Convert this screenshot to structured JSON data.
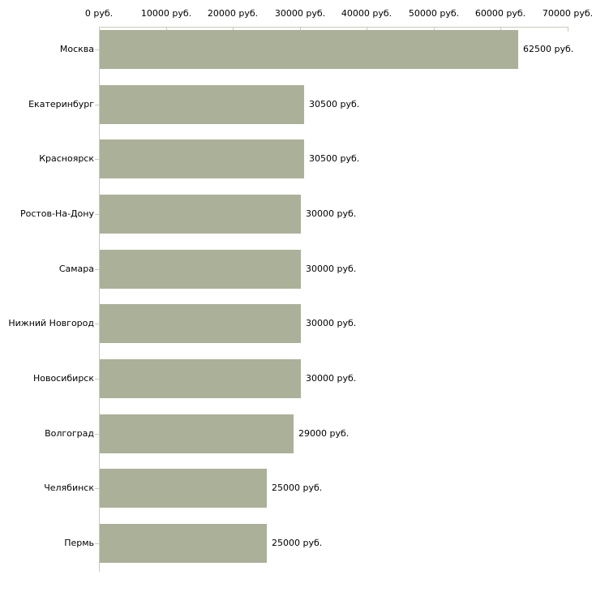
{
  "chart_data": {
    "type": "bar",
    "orientation": "horizontal",
    "title": "",
    "categories": [
      "Москва",
      "Екатеринбург",
      "Красноярск",
      "Ростов-На-Дону",
      "Самара",
      "Нижний Новгород",
      "Новосибирск",
      "Волгоград",
      "Челябинск",
      "Пермь"
    ],
    "values": [
      62500,
      30500,
      30500,
      30000,
      30000,
      30000,
      30000,
      29000,
      25000,
      25000
    ],
    "value_labels": [
      "62500 руб.",
      "30500 руб.",
      "30500 руб.",
      "30000 руб.",
      "30000 руб.",
      "30000 руб.",
      "30000 руб.",
      "29000 руб.",
      "25000 руб.",
      "25000 руб."
    ],
    "x_tick_labels": [
      "0 руб.",
      "10000 руб.",
      "20000 руб.",
      "30000 руб.",
      "40000 руб.",
      "50000 руб.",
      "60000 руб.",
      "70000 руб."
    ],
    "xlim": [
      0,
      70000
    ],
    "x_tick_step": 10000,
    "unit": "руб.",
    "xlabel": "",
    "ylabel": "",
    "grid": "off",
    "legend": "none",
    "colors": {
      "bar": "#abb098",
      "axis": "#c7cbb9",
      "text": "#000000",
      "background": "#ffffff"
    }
  }
}
